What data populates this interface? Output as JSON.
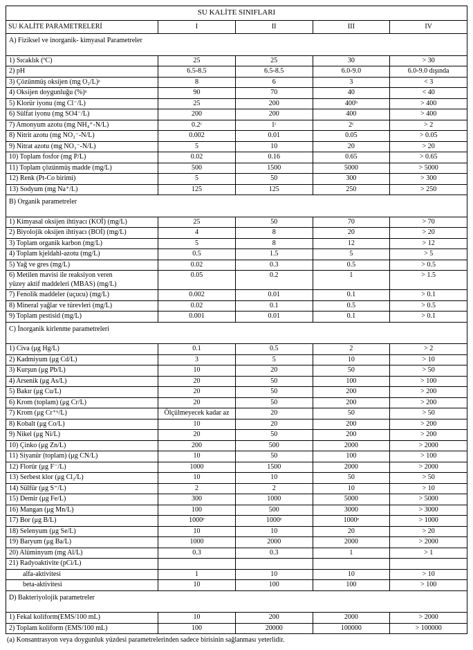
{
  "title": "SU KALİTE SINIFLARI",
  "header": {
    "param_label": "SU KALİTE PARAMETRELERİ",
    "classes": [
      "I",
      "II",
      "III",
      "IV"
    ]
  },
  "sections": [
    {
      "label": "A) Fiziksel ve inorganik- kimyasal Parametreler",
      "rows": [
        {
          "p": "1) Sıcaklık (ºC)",
          "v": [
            "25",
            "25",
            "30",
            "> 30"
          ]
        },
        {
          "p": "2) pH",
          "v": [
            "6.5-8.5",
            "6.5-8.5",
            "6.0-9.0",
            "6.0-9.0 dışında"
          ]
        },
        {
          "p": "3) Çözünmüş oksijen (mg O₂/L)ᵃ",
          "v": [
            "8",
            "6",
            "3",
            "< 3"
          ]
        },
        {
          "p": "4) Oksijen doygunluğu (%)ᵃ",
          "v": [
            "90",
            "70",
            "40",
            "< 40"
          ]
        },
        {
          "p": "5) Klorür iyonu (mg Cl⁻/L)",
          "v": [
            "25",
            "200",
            "400ᵇ",
            "> 400"
          ]
        },
        {
          "p": "6) Sülfat iyonu (mg SO4⁻/L)",
          "v": [
            "200",
            "200",
            "400",
            "> 400"
          ]
        },
        {
          "p": "7) Amonyum azotu (mg NH₄⁺-N/L)",
          "v": [
            "0.2ᶜ",
            "1ᶜ",
            "2ᶜ",
            "> 2"
          ]
        },
        {
          "p": "8) Nitrit azotu (mg NO₂⁻-N/L)",
          "v": [
            "0.002",
            "0.01",
            "0.05",
            "> 0.05"
          ]
        },
        {
          "p": "9) Nitrat azotu (mg NO₃⁻-N/L)",
          "v": [
            "5",
            "10",
            "20",
            "> 20"
          ]
        },
        {
          "p": "10) Toplam fosfor (mg P/L)",
          "v": [
            "0.02",
            "0.16",
            "0.65",
            "> 0.65"
          ]
        },
        {
          "p": "11) Toplam çözünmüş madde (mg/L)",
          "v": [
            "500",
            "1500",
            "5000",
            "> 5000"
          ]
        },
        {
          "p": "12) Renk (Pt-Co birimi)",
          "v": [
            "5",
            "50",
            "300",
            "> 300"
          ]
        },
        {
          "p": "13) Sodyum (mg Na⁺/L)",
          "v": [
            "125",
            "125",
            "250",
            "> 250"
          ]
        }
      ]
    },
    {
      "label": "B) Organik parametreler",
      "rows": [
        {
          "p": "1) Kimyasal oksijen ihtiyacı (KOİ) (mg/L)",
          "v": [
            "25",
            "50",
            "70",
            "> 70"
          ]
        },
        {
          "p": "2) Biyolojik oksijen ihtiyacı (BOİ) (mg/L)",
          "v": [
            "4",
            "8",
            "20",
            "> 20"
          ]
        },
        {
          "p": "3) Toplam organik karbon (mg/L)",
          "v": [
            "5",
            "8",
            "12",
            "> 12"
          ]
        },
        {
          "p": "4) Toplam kjeldahl-azotu (mg/L)",
          "v": [
            "0.5",
            "1.5",
            "5",
            "> 5"
          ]
        },
        {
          "p": "5) Yağ ve gres (mg/L)",
          "v": [
            "0.02",
            "0.3",
            "0.5",
            "> 0.5"
          ]
        },
        {
          "p": "6) Metilen mavisi ile reaksiyon veren\n yüzey aktif maddeleri (MBAS) (mg/L)",
          "v": [
            "0.05",
            "0.2",
            "1",
            "> 1.5"
          ]
        },
        {
          "p": "7) Fenolik maddeler (uçucu) (mg/L)",
          "v": [
            "0.002",
            "0.01",
            "0.1",
            "> 0.1"
          ]
        },
        {
          "p": "8) Mineral yağlar ve türevleri (mg/L)",
          "v": [
            "0.02",
            "0.1",
            "0.5",
            "> 0.5"
          ]
        },
        {
          "p": "9) Toplam pestisid (mg/L)",
          "v": [
            "0.001",
            "0.01",
            "0.1",
            "> 0.1"
          ]
        }
      ]
    },
    {
      "label": "C) İnorganik kirlenme parametreleri",
      "rows": [
        {
          "p": "1) Civa (μg Hg/L)",
          "v": [
            "0.1",
            "0.5",
            "2",
            "> 2"
          ]
        },
        {
          "p": "2) Kadmiyum (μg Cd/L)",
          "v": [
            "3",
            "5",
            "10",
            "> 10"
          ]
        },
        {
          "p": "3) Kurşun (μg Pb/L)",
          "v": [
            "10",
            "20",
            "50",
            "> 50"
          ]
        },
        {
          "p": "4) Arsenik (μg As/L)",
          "v": [
            "20",
            "50",
            "100",
            "> 100"
          ]
        },
        {
          "p": "5) Bakır (μg Cu/L)",
          "v": [
            "20",
            "50",
            "200",
            "> 200"
          ]
        },
        {
          "p": "6) Krom (toplam) (μg Cr/L)",
          "v": [
            "20",
            "50",
            "200",
            "> 200"
          ]
        },
        {
          "p": "7) Krom (μg Cr⁺⁶/L)",
          "v": [
            "Ölçülmeyecek kadar az",
            "20",
            "50",
            "> 50"
          ]
        },
        {
          "p": "8) Kobalt (μg Co/L)",
          "v": [
            "10",
            "20",
            "200",
            "> 200"
          ]
        },
        {
          "p": "9) Nikel (μg Ni/L)",
          "v": [
            "20",
            "50",
            "200",
            "> 200"
          ]
        },
        {
          "p": "10) Çinko (μg Zn/L)",
          "v": [
            "200",
            "500",
            "2000",
            "> 2000"
          ]
        },
        {
          "p": "11) Siyanür (toplam) (μg CN/L)",
          "v": [
            "10",
            "50",
            "100",
            "> 100"
          ]
        },
        {
          "p": "12) Florür (μg F⁻/L)",
          "v": [
            "1000",
            "1500",
            "2000",
            "> 2000"
          ]
        },
        {
          "p": "13) Serbest klor (μg Cl₂/L)",
          "v": [
            "10",
            "10",
            "50",
            "> 50"
          ]
        },
        {
          "p": "14) Sülfür (μg S⁼/L)",
          "v": [
            "2",
            "2",
            "10",
            "> 10"
          ]
        },
        {
          "p": "15) Demir (μg Fe/L)",
          "v": [
            "300",
            "1000",
            "5000",
            "> 5000"
          ]
        },
        {
          "p": "16) Mangan (μg Mn/L)",
          "v": [
            "100",
            "500",
            "3000",
            "> 3000"
          ]
        },
        {
          "p": "17) Bor (μg B/L)",
          "v": [
            "1000ᵉ",
            "1000ᵉ",
            "1000ᵉ",
            "> 1000"
          ]
        },
        {
          "p": "18) Selenyum (μg Se/L)",
          "v": [
            "10",
            "10",
            "20",
            "> 20"
          ]
        },
        {
          "p": "19) Baryum (μg Ba/L)",
          "v": [
            "1000",
            "2000",
            "2000",
            "> 2000"
          ]
        },
        {
          "p": "20) Alüminyum (mg Al/L)",
          "v": [
            "0.3",
            "0.3",
            "1",
            "> 1"
          ]
        },
        {
          "p": "21) Radyoaktivite (pCi/L)",
          "v": [
            "",
            "",
            "",
            ""
          ]
        },
        {
          "p": "alfa-aktivitesi",
          "v": [
            "1",
            "10",
            "10",
            "> 10"
          ],
          "indent": true
        },
        {
          "p": "beta-aktivitesi",
          "v": [
            "10",
            "100",
            "100",
            "> 100"
          ],
          "indent": true
        }
      ]
    },
    {
      "label": "D) Bakteriyolojik parametreler",
      "rows": [
        {
          "p": "1) Fekal koliform(EMS/100 mL)",
          "v": [
            "10",
            "200",
            "2000",
            "> 2000"
          ]
        },
        {
          "p": "2) Toplam koliform (EMS/100 mL)",
          "v": [
            "100",
            "20000",
            "100000",
            "> 100000"
          ]
        }
      ]
    }
  ],
  "footnote": "(a) Konsantrasyon veya doygunluk yüzdesi parametrelerinden sadece birisinin sağlanması yeterlidir."
}
